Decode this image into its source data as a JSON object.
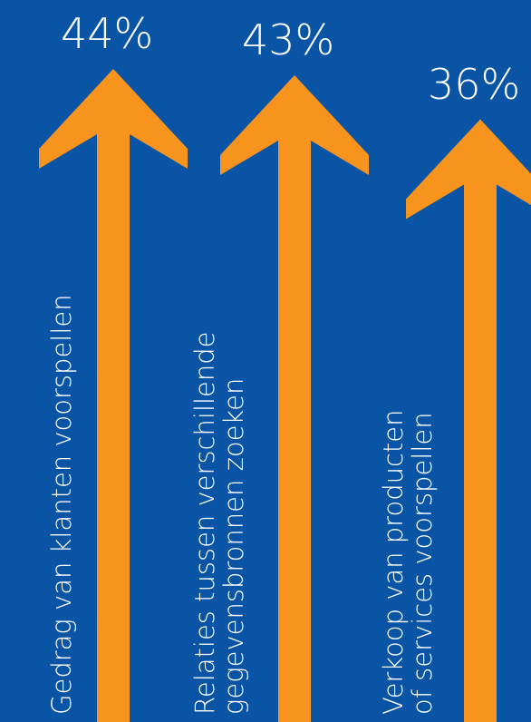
{
  "chart_data": {
    "type": "bar",
    "categories": [
      "Gedrag van klanten voorspellen",
      "Relaties tussen verschillende gegevensbronnen zoeken",
      "Verkoop van producten of services voorspellen"
    ],
    "values": [
      44,
      43,
      36
    ],
    "value_labels": [
      "44%",
      "43%",
      "36%"
    ],
    "category_lines": [
      [
        "Gedrag van klanten voorspellen"
      ],
      [
        "Relaties tussen verschillende",
        "gegevensbronnen zoeken"
      ],
      [
        "Verkoop van producten",
        "of services voorspellen"
      ]
    ],
    "ylim": [
      0,
      46
    ],
    "colors": {
      "background": "#0a54a6",
      "arrow": "#f7941e",
      "text": "#ffffff"
    }
  }
}
